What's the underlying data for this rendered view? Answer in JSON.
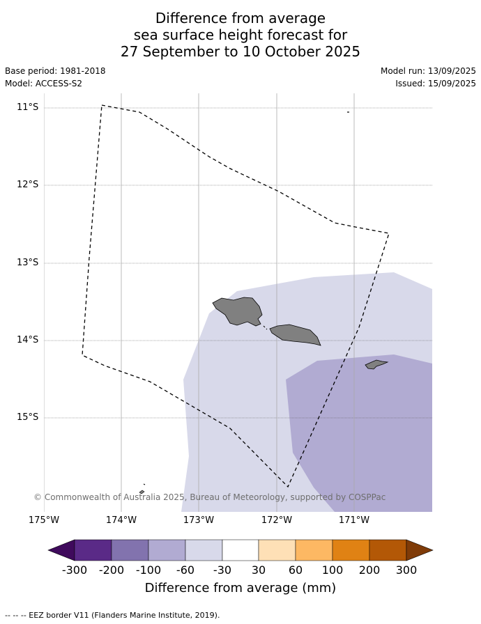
{
  "title": {
    "line1": "Difference from average",
    "line2": "sea surface height forecast for",
    "line3": "27 September to 10 October 2025"
  },
  "meta": {
    "base_period": "Base period: 1981-2018",
    "model": "Model: ACCESS-S2",
    "model_run": "Model run: 13/09/2025",
    "issued": "Issued: 15/09/2025"
  },
  "map": {
    "lat_labels": [
      "11°S",
      "12°S",
      "13°S",
      "14°S",
      "15°S"
    ],
    "lon_labels": [
      "175°W",
      "174°W",
      "173°W",
      "172°W",
      "171°W"
    ],
    "copyright": "© Commonwealth of Australia 2025, Bureau of Meteorology, supported by COSPPac",
    "colors": {
      "band_minus60_minus30": "#d8d9ea",
      "band_minus100_minus60": "#b1abd2",
      "land": "#808080"
    }
  },
  "colorbar": {
    "label": "Difference from average (mm)",
    "ticks": [
      "-300",
      "-200",
      "-100",
      "-60",
      "-30",
      "30",
      "60",
      "100",
      "200",
      "300"
    ],
    "colors": [
      "#3f0a5c",
      "#5a2a87",
      "#8273ae",
      "#b1abd2",
      "#d8d9ea",
      "#ffffff",
      "#fee0b6",
      "#fdb863",
      "#e08214",
      "#b35806",
      "#7f3b08"
    ]
  },
  "legend": {
    "text": "--  --  -- EEZ border V11 (Flanders Marine Institute, 2019)."
  }
}
